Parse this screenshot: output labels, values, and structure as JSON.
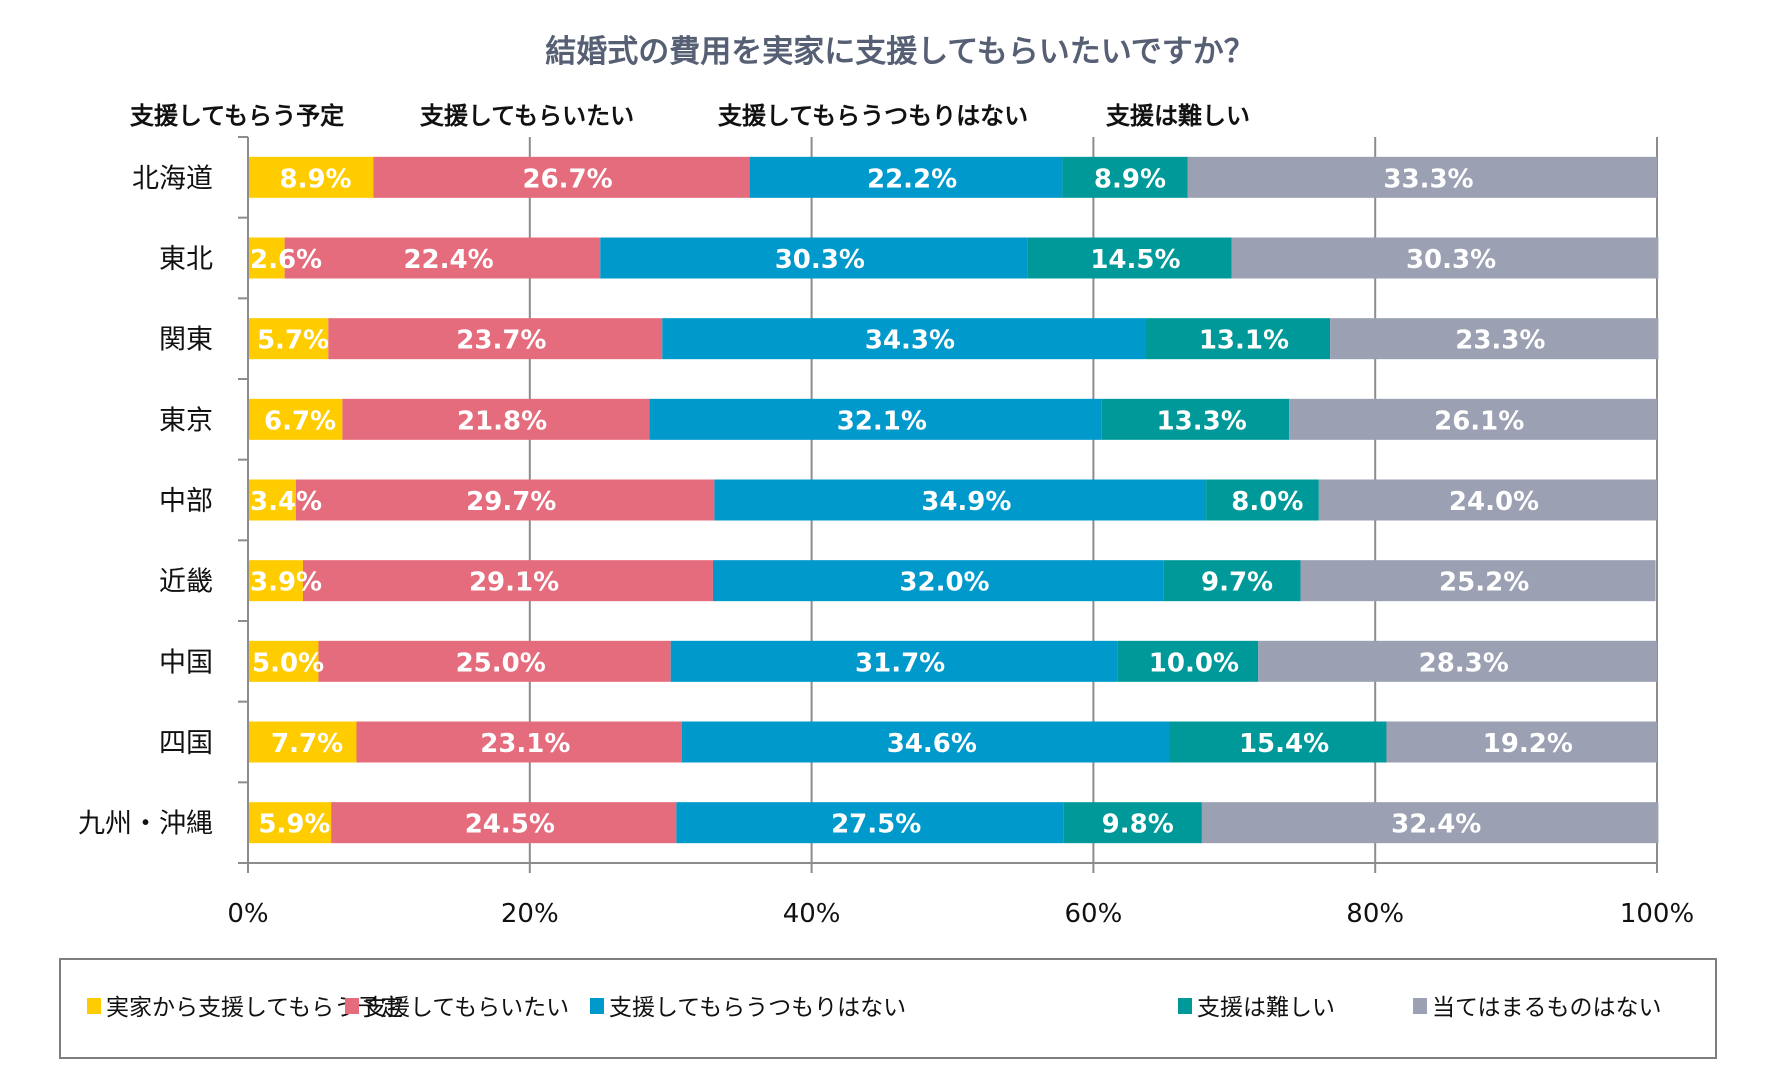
{
  "chart_data": {
    "type": "bar",
    "orientation": "horizontal",
    "stacked": "percent",
    "title": "結婚式の費用を実家に支援してもらいたいですか？",
    "column_headers": [
      "支援してもらう予定",
      "支援してもらいたい",
      "支援してもらうつもりはない",
      "支援は難しい"
    ],
    "categories": [
      "北海道",
      "東北",
      "関東",
      "東京",
      "中部",
      "近畿",
      "中国",
      "四国",
      "九州・沖縄"
    ],
    "series": [
      {
        "name": "実家から支援してもらう予定",
        "color": "#FFCC00",
        "values": [
          8.9,
          2.6,
          5.7,
          6.7,
          3.4,
          3.9,
          5.0,
          7.7,
          5.9
        ]
      },
      {
        "name": "支援してもらいたい",
        "color": "#E56C7D",
        "values": [
          26.7,
          22.4,
          23.7,
          21.8,
          29.7,
          29.1,
          25.0,
          23.1,
          24.5
        ]
      },
      {
        "name": "支援してもらうつもりはない",
        "color": "#0099CC",
        "values": [
          22.2,
          30.3,
          34.3,
          32.1,
          34.9,
          32.0,
          31.7,
          34.6,
          27.5
        ]
      },
      {
        "name": "支援は難しい",
        "color": "#009999",
        "values": [
          8.9,
          14.5,
          13.1,
          13.3,
          8.0,
          9.7,
          10.0,
          15.4,
          9.8
        ]
      },
      {
        "name": "当てはまるものはない",
        "color": "#9BA0B3",
        "values": [
          33.3,
          30.3,
          23.3,
          26.1,
          24.0,
          25.2,
          28.3,
          19.2,
          32.4
        ]
      }
    ],
    "value_suffix": "%",
    "xlim": [
      0,
      100
    ],
    "xticks": [
      "0%",
      "20%",
      "40%",
      "60%",
      "80%",
      "100%"
    ],
    "xlabel": "",
    "ylabel": "",
    "grid": true,
    "legend_position": "bottom"
  }
}
